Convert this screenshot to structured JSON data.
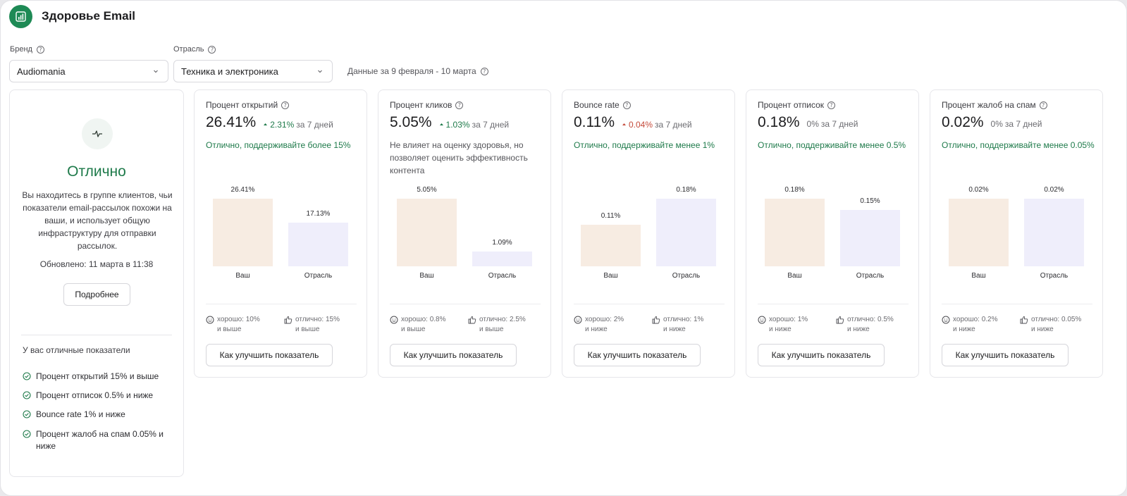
{
  "app": {
    "title": "Здоровье Email"
  },
  "filters": {
    "brand_label": "Бренд",
    "brand_value": "Audiomania",
    "industry_label": "Отрасль",
    "industry_value": "Техника и электроника",
    "date_range": "Данные за 9 февраля - 10 марта"
  },
  "summary": {
    "status": "Отлично",
    "description": "Вы находитесь в группе клиентов, чьи показатели email-рассылок похожи на ваши, и использует общую инфраструктуру для отправки рассылок.",
    "updated": "Обновлено: 11 марта в 11:38",
    "more_button": "Подробнее",
    "achievements_title": "У вас отличные показатели",
    "achievements": [
      "Процент открытий 15% и выше",
      "Процент отписок 0.5% и ниже",
      "Bounce rate 1% и ниже",
      "Процент жалоб на спам 0.05% и ниже"
    ]
  },
  "metrics": [
    {
      "title": "Процент открытий",
      "value": "26.41%",
      "delta": "2.31%",
      "delta_dir": "up",
      "delta_period": "за 7 дней",
      "note": "Отлично, поддерживайте более 15%",
      "note_tone": "good",
      "yours_label": "26.41%",
      "yours_value": 26.41,
      "industry_label": "17.13%",
      "industry_value": 17.13,
      "cat_yours": "Ваш",
      "cat_industry": "Отрасль",
      "good_line1": "хорошо: 10%",
      "good_line2": "и выше",
      "excellent_line1": "отлично: 15%",
      "excellent_line2": "и выше",
      "button": "Как улучшить показатель"
    },
    {
      "title": "Процент кликов",
      "value": "5.05%",
      "delta": "1.03%",
      "delta_dir": "up",
      "delta_period": "за 7 дней",
      "note": "Не влияет на оценку здоровья, но позволяет оценить эффективность контента",
      "note_tone": "neutral",
      "yours_label": "5.05%",
      "yours_value": 5.05,
      "industry_label": "1.09%",
      "industry_value": 1.09,
      "cat_yours": "Ваш",
      "cat_industry": "Отрасль",
      "good_line1": "хорошо: 0.8%",
      "good_line2": "и выше",
      "excellent_line1": "отлично: 2.5%",
      "excellent_line2": "и выше",
      "button": "Как улучшить показатель"
    },
    {
      "title": "Bounce rate",
      "value": "0.11%",
      "delta": "0.04%",
      "delta_dir": "down",
      "delta_period": "за 7 дней",
      "note": "Отлично, поддерживайте менее 1%",
      "note_tone": "good",
      "yours_label": "0.11%",
      "yours_value": 0.11,
      "industry_label": "0.18%",
      "industry_value": 0.18,
      "cat_yours": "Ваш",
      "cat_industry": "Отрасль",
      "good_line1": "хорошо: 2%",
      "good_line2": "и ниже",
      "excellent_line1": "отлично: 1%",
      "excellent_line2": "и ниже",
      "button": "Как улучшить показатель"
    },
    {
      "title": "Процент отписок",
      "value": "0.18%",
      "delta": "0%",
      "delta_dir": "flat",
      "delta_period": "за 7 дней",
      "note": "Отлично, поддерживайте менее 0.5%",
      "note_tone": "good",
      "yours_label": "0.18%",
      "yours_value": 0.18,
      "industry_label": "0.15%",
      "industry_value": 0.15,
      "cat_yours": "Ваш",
      "cat_industry": "Отрасль",
      "good_line1": "хорошо: 1%",
      "good_line2": "и ниже",
      "excellent_line1": "отлично: 0.5%",
      "excellent_line2": "и ниже",
      "button": "Как улучшить показатель"
    },
    {
      "title": "Процент жалоб на спам",
      "value": "0.02%",
      "delta": "0%",
      "delta_dir": "flat",
      "delta_period": "за 7 дней",
      "note": "Отлично, поддерживайте менее 0.05%",
      "note_tone": "good",
      "yours_label": "0.02%",
      "yours_value": 0.02,
      "industry_label": "0.02%",
      "industry_value": 0.02,
      "cat_yours": "Ваш",
      "cat_industry": "Отрасль",
      "good_line1": "хорошо: 0.2%",
      "good_line2": "и ниже",
      "excellent_line1": "отлично: 0.05%",
      "excellent_line2": "и ниже",
      "button": "Как улучшить показатель"
    }
  ],
  "colors": {
    "accent_green": "#1e7a4a",
    "negative_red": "#c44a3a",
    "bar_yours": "#f7ece2",
    "bar_industry": "#efeefb"
  },
  "icons": {
    "logo": "bar-chart-icon",
    "status": "pulse-icon",
    "help": "question-circle-icon",
    "achievement": "check-circle-icon",
    "good": "smile-icon",
    "excellent": "thumbs-up-icon"
  }
}
